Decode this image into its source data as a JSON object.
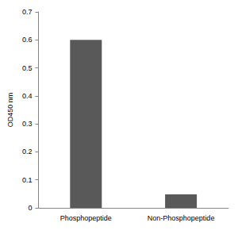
{
  "chart_data": {
    "type": "bar",
    "y_label": "OD450 nm",
    "categories": [
      "Phosphopeptide",
      "Non-Phosphopeptide"
    ],
    "values": [
      0.6,
      0.048
    ],
    "color": "#595959",
    "ylim": [
      0,
      0.7
    ],
    "yticks": [
      0,
      0.1,
      0.2,
      0.3,
      0.4,
      0.5,
      0.6,
      0.7
    ],
    "grid": false
  }
}
